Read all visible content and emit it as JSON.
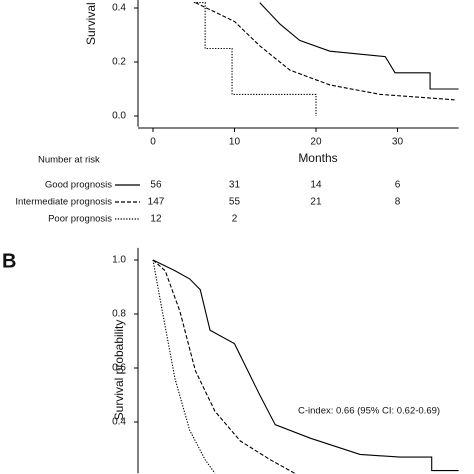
{
  "chart_data": [
    {
      "type": "line",
      "step": true,
      "y_label": "Survival probability",
      "x_label": "Months",
      "xlim": [
        -2,
        37.5
      ],
      "ylim": [
        -0.04,
        0.42
      ],
      "xticks": [
        0,
        10,
        20,
        30
      ],
      "yticks": [
        0.4,
        0.2,
        {
          "value": 0,
          "label": "0.0"
        }
      ],
      "risk_title": "Number at risk",
      "series": [
        {
          "name": "Good prognosis",
          "color": "#000000",
          "style": "solid",
          "x": [
            13.1,
            15.6,
            18,
            21.7,
            28.5,
            29.7,
            34,
            34,
            37.5
          ],
          "values": [
            0.42,
            0.34,
            0.28,
            0.24,
            0.22,
            0.16,
            0.16,
            0.1,
            0.1
          ],
          "at_risk": [
            56,
            31,
            14,
            6
          ]
        },
        {
          "name": "Intermediate prognosis",
          "color": "#000000",
          "style": "dashed",
          "x": [
            5.2,
            10,
            13.1,
            16.8,
            21.7,
            27.9,
            37
          ],
          "values": [
            0.42,
            0.35,
            0.26,
            0.17,
            0.115,
            0.08,
            0.06
          ],
          "at_risk": [
            147,
            55,
            21,
            8
          ]
        },
        {
          "name": "Poor prognosis",
          "color": "#000000",
          "style": "dotted",
          "x": [
            5,
            6.4,
            6.4,
            9.7,
            9.7,
            20,
            20
          ],
          "values": [
            0.42,
            0.42,
            0.25,
            0.25,
            0.08,
            0.08,
            0
          ],
          "at_risk": [
            12,
            2
          ]
        }
      ]
    },
    {
      "type": "line",
      "step": true,
      "panel": "B",
      "y_label": "Survival probability",
      "annotation": "C-index: 0.66 (95% CI: 0.62-0.69)",
      "xlim": [
        -2,
        37.5
      ],
      "ylim": [
        0.21,
        1.03
      ],
      "yticks": [
        {
          "value": 1,
          "label": "1.0"
        },
        0.8,
        0.6,
        0.4
      ],
      "series": [
        {
          "color": "#000000",
          "style": "solid",
          "x": [
            0,
            2.7,
            4.5,
            5.8,
            7,
            10,
            13.1,
            15,
            19.3,
            25.4,
            30.3,
            34.2,
            34.2,
            37.5
          ],
          "values": [
            1,
            0.96,
            0.93,
            0.89,
            0.74,
            0.69,
            0.5,
            0.39,
            0.34,
            0.28,
            0.27,
            0.27,
            0.22,
            0.22
          ]
        },
        {
          "color": "#000000",
          "style": "dashed",
          "x": [
            0,
            1.5,
            3.3,
            5.2,
            7.6,
            10.7,
            14.4,
            17.4
          ],
          "values": [
            1,
            0.96,
            0.81,
            0.59,
            0.44,
            0.33,
            0.26,
            0.21
          ]
        },
        {
          "color": "#000000",
          "style": "dotted",
          "x": [
            0,
            0.9,
            2.7,
            4.5,
            6.4,
            7.6
          ],
          "values": [
            1,
            0.85,
            0.56,
            0.37,
            0.26,
            0.21
          ]
        }
      ]
    }
  ]
}
